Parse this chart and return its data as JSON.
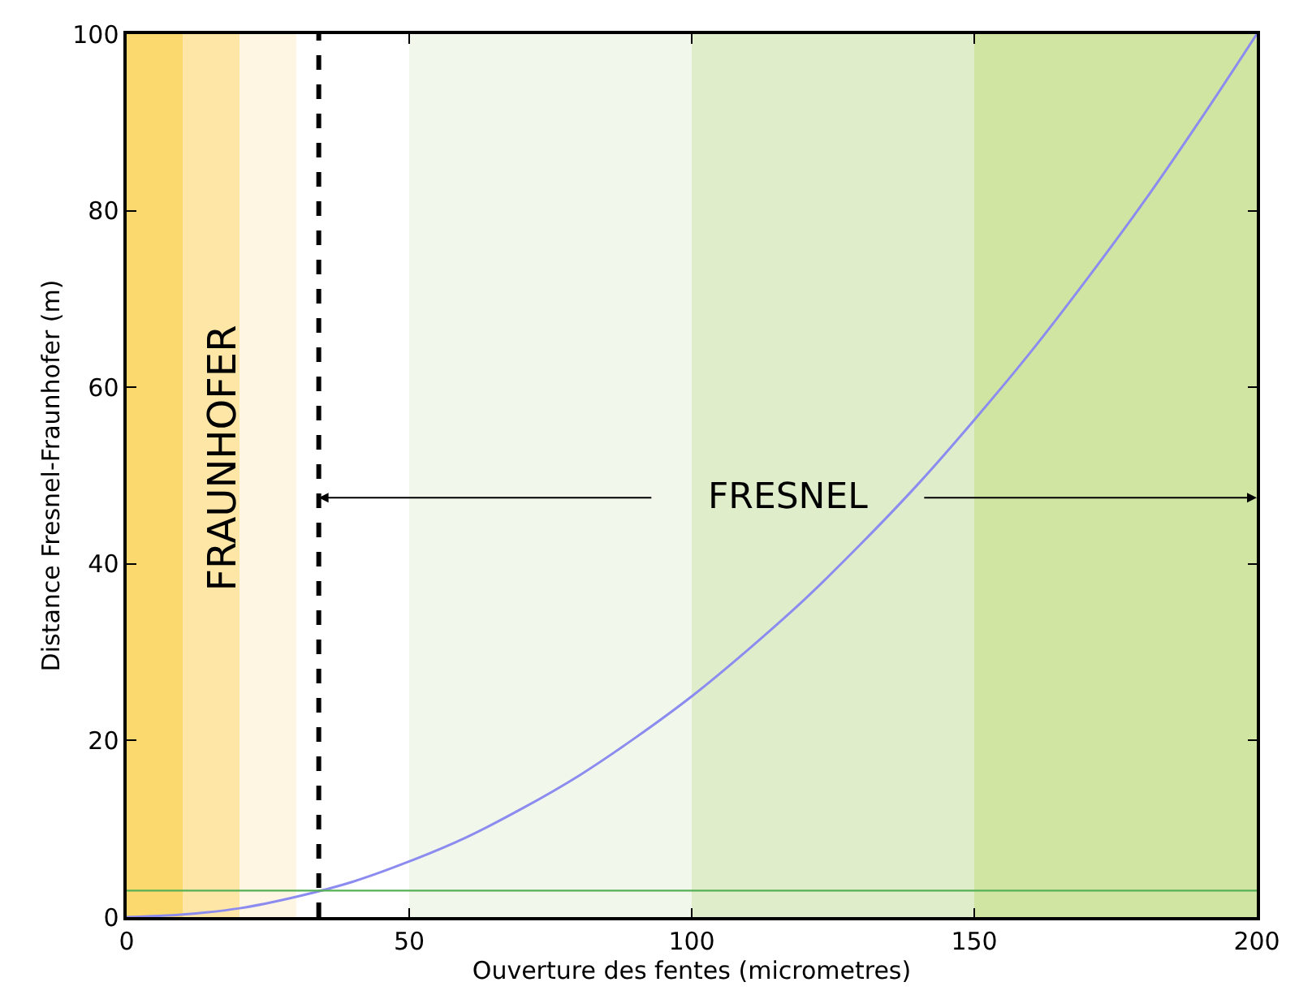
{
  "chart_data": {
    "type": "line",
    "xlabel": "Ouverture des fentes (micrometres)",
    "ylabel": "Distance Fresnel-Fraunhofer (m)",
    "x": [
      0,
      10,
      20,
      30,
      40,
      50,
      60,
      70,
      80,
      90,
      100,
      110,
      120,
      130,
      140,
      150,
      160,
      170,
      180,
      190,
      200
    ],
    "series": [
      {
        "color": "#8c8cf0",
        "values": [
          0,
          0.3,
          1,
          2.3,
          4,
          6.3,
          9,
          12.3,
          16,
          20.3,
          25,
          30.3,
          36,
          42.3,
          49,
          56.3,
          64,
          72.3,
          81,
          90.3,
          100
        ]
      }
    ],
    "xlim": [
      0,
      200
    ],
    "xticks": [
      0,
      50,
      100,
      150,
      200
    ],
    "ylim": [
      0,
      100
    ],
    "yticks": [
      0,
      20,
      40,
      60,
      80,
      100
    ],
    "grid": false,
    "marker": "none",
    "line_style": "solid",
    "ref_lines": [
      {
        "axis": "x",
        "value": 34,
        "color": "#000000",
        "line_style": "dashed"
      },
      {
        "axis": "y",
        "value": 3,
        "color": "#55b055",
        "line_style": "solid"
      }
    ],
    "bands": [
      {
        "axis": "x",
        "from": 0,
        "to": 10,
        "color": "#fcd96e"
      },
      {
        "axis": "x",
        "from": 10,
        "to": 20,
        "color": "#fde6a6"
      },
      {
        "axis": "x",
        "from": 20,
        "to": 30,
        "color": "#fef5e2"
      },
      {
        "axis": "x",
        "from": 50,
        "to": 100,
        "color": "#f1f7ea"
      },
      {
        "axis": "x",
        "from": 100,
        "to": 150,
        "color": "#dfedcb"
      },
      {
        "axis": "x",
        "from": 150,
        "to": 200,
        "color": "#d0e5a2"
      }
    ],
    "annotations": [
      "FRAUNHOFER",
      "FRESNEL"
    ]
  }
}
